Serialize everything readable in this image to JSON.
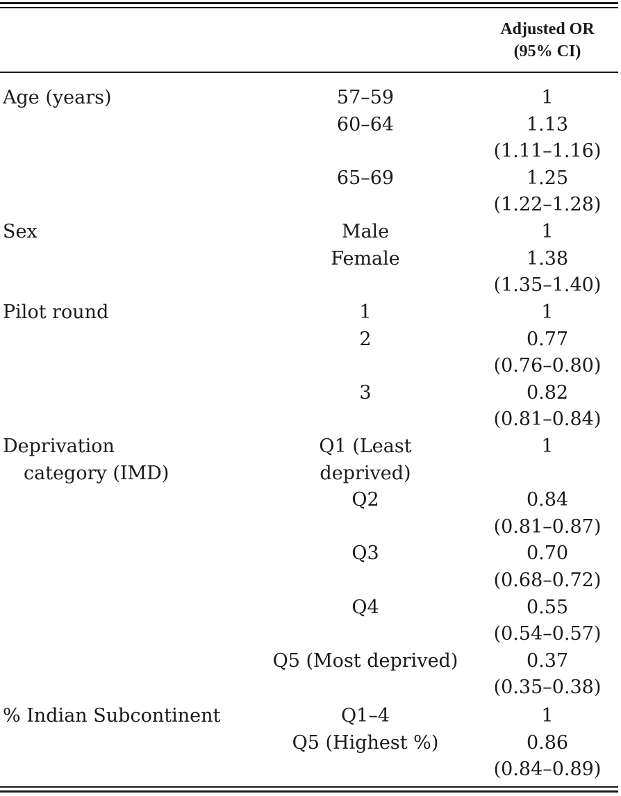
{
  "header": {
    "or_line1": "Adjusted OR",
    "or_line2": "(95% CI)"
  },
  "groups": [
    {
      "category": "Age (years)",
      "rows": [
        {
          "level": "57–59",
          "or": "1",
          "ci": ""
        },
        {
          "level": "60–64",
          "or": "1.13",
          "ci": "(1.11–1.16)"
        },
        {
          "level": "65–69",
          "or": "1.25",
          "ci": "(1.22–1.28)"
        }
      ]
    },
    {
      "category": "Sex",
      "rows": [
        {
          "level": "Male",
          "or": "1",
          "ci": ""
        },
        {
          "level": "Female",
          "or": "1.38",
          "ci": "(1.35–1.40)"
        }
      ]
    },
    {
      "category": "Pilot round",
      "rows": [
        {
          "level": "1",
          "or": "1",
          "ci": ""
        },
        {
          "level": "2",
          "or": "0.77",
          "ci": "(0.76–0.80)"
        },
        {
          "level": "3",
          "or": "0.82",
          "ci": "(0.81–0.84)"
        }
      ]
    },
    {
      "category": "Deprivation",
      "category_line2": "category (IMD)",
      "rows": [
        {
          "level": "Q1 (Least",
          "level_line2": "deprived)",
          "or": "1",
          "ci": ""
        },
        {
          "level": "Q2",
          "or": "0.84",
          "ci": "(0.81–0.87)"
        },
        {
          "level": "Q3",
          "or": "0.70",
          "ci": "(0.68–0.72)"
        },
        {
          "level": "Q4",
          "or": "0.55",
          "ci": "(0.54–0.57)"
        },
        {
          "level": "Q5 (Most deprived)",
          "or": "0.37",
          "ci": "(0.35–0.38)"
        }
      ]
    },
    {
      "category": "% Indian Subcontinent",
      "rows": [
        {
          "level": "Q1–4",
          "or": "1",
          "ci": ""
        },
        {
          "level": "Q5 (Highest %)",
          "or": "0.86",
          "ci": "(0.84–0.89)"
        }
      ]
    }
  ]
}
